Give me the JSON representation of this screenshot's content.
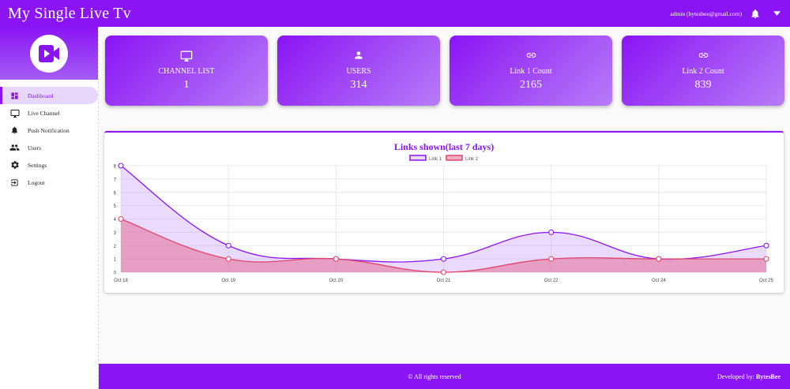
{
  "header": {
    "title": "My Single Live Tv",
    "admin": "admin (bytesbee@gmail.com)"
  },
  "sidebar": {
    "items": [
      {
        "label": "Dashboard",
        "icon": "dashboard-icon"
      },
      {
        "label": "Live Channel",
        "icon": "monitor-icon"
      },
      {
        "label": "Push Notification",
        "icon": "bell-icon"
      },
      {
        "label": "Users",
        "icon": "users-icon"
      },
      {
        "label": "Settings",
        "icon": "gear-icon"
      },
      {
        "label": "Logout",
        "icon": "logout-icon"
      }
    ]
  },
  "cards": [
    {
      "label": "CHANNEL LIST",
      "value": "1",
      "icon": "monitor-icon"
    },
    {
      "label": "USERS",
      "value": "314",
      "icon": "user-icon"
    },
    {
      "label": "Link 1 Count",
      "value": "2165",
      "icon": "link-icon"
    },
    {
      "label": "Link 2 Count",
      "value": "839",
      "icon": "link-icon"
    }
  ],
  "chart_data": {
    "type": "area",
    "title": "Links shown(last 7 days)",
    "categories": [
      "Oct 18",
      "Oct 19",
      "Oct 20",
      "Oct 21",
      "Oct 22",
      "Oct 24",
      "Oct 25"
    ],
    "ylim": [
      0,
      8
    ],
    "yticks": [
      0,
      1,
      2,
      3,
      4,
      5,
      6,
      7,
      8
    ],
    "legend_position": "top-center",
    "grid": true,
    "series": [
      {
        "name": "Link 1",
        "values": [
          8,
          2,
          1,
          1,
          3,
          1,
          2
        ],
        "color": "#8b14f5",
        "fill": "rgba(196,150,250,0.35)"
      },
      {
        "name": "Link 2",
        "values": [
          4,
          1,
          1,
          0,
          1,
          1,
          1
        ],
        "color": "#e0456a",
        "fill": "rgba(228,110,150,0.55)"
      }
    ]
  },
  "footer": {
    "copyright": "© All rights reserved",
    "dev_prefix": "Developed by:",
    "dev_name": "BytesBee"
  },
  "colors": {
    "primary": "#8b14f5"
  }
}
